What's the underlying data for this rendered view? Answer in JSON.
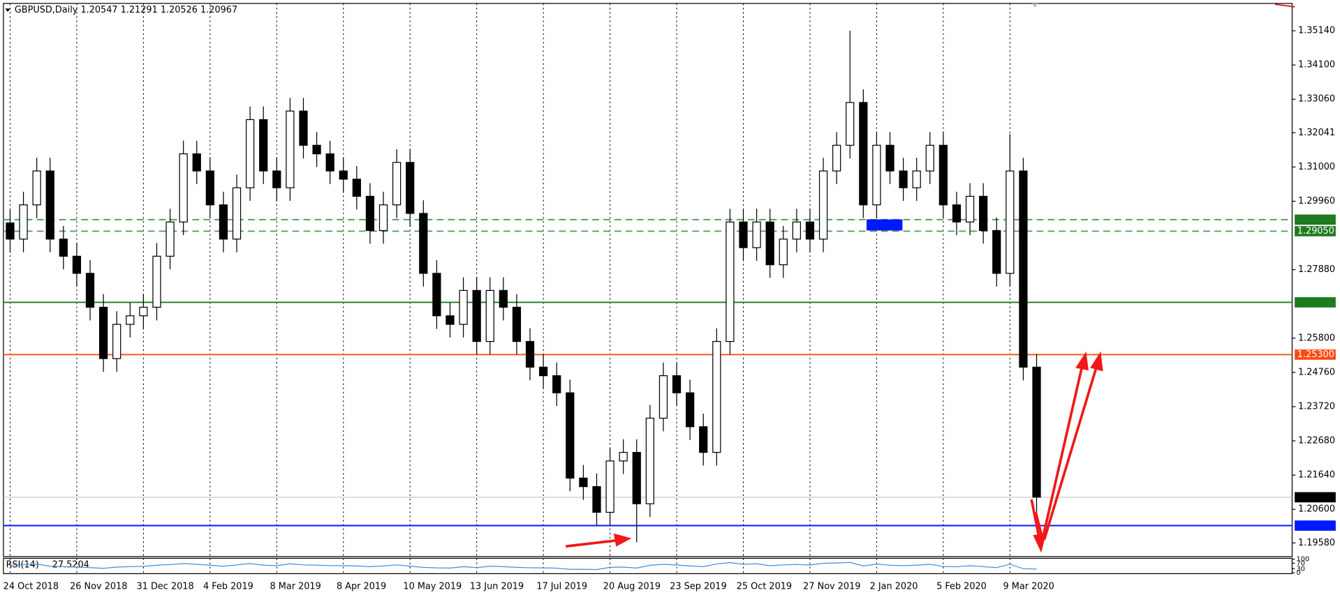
{
  "chart_data": [
    {
      "type": "candlestick",
      "title": "GBPUSD,Daily  1.20547 1.21291 1.20526 1.20967",
      "categories": [
        "24 Oct 2018",
        null,
        null,
        null,
        null,
        "26 Nov 2018",
        null,
        null,
        null,
        null,
        "31 Dec 2018",
        null,
        null,
        null,
        null,
        "4 Feb 2019",
        null,
        null,
        null,
        null,
        "8 Mar 2019",
        null,
        null,
        null,
        null,
        "8 Apr 2019",
        null,
        null,
        null,
        null,
        "10 May 2019",
        null,
        null,
        null,
        null,
        "13 Jun 2019",
        null,
        null,
        null,
        null,
        "17 Jul 2019",
        null,
        null,
        null,
        null,
        "20 Aug 2019",
        null,
        null,
        null,
        null,
        "23 Sep 2019",
        null,
        null,
        null,
        null,
        "25 Oct 2019",
        null,
        null,
        null,
        null,
        "27 Nov 2019",
        null,
        null,
        null,
        null,
        "2 Jan 2020",
        null,
        null,
        null,
        null,
        "5 Feb 2020",
        null,
        null,
        null,
        null,
        "9 Mar 2020",
        null,
        null
      ],
      "open": [
        1.293,
        1.2881,
        1.2985,
        1.3088,
        1.2881,
        1.2829,
        1.2777,
        1.2674,
        1.2518,
        1.2622,
        1.2648,
        1.2674,
        1.2829,
        1.2933,
        1.314,
        1.3088,
        1.2985,
        1.2881,
        1.3037,
        1.3244,
        1.3088,
        1.3037,
        1.327,
        1.3166,
        1.314,
        1.3088,
        1.3063,
        1.3011,
        1.2907,
        1.2985,
        1.3114,
        1.2959,
        1.2777,
        1.2648,
        1.2622,
        1.2725,
        1.257,
        1.2725,
        1.2674,
        1.257,
        1.2492,
        1.2466,
        1.2414,
        1.2155,
        1.2129,
        1.2051,
        1.2207,
        1.2233,
        1.2077,
        1.2337,
        1.2466,
        1.2414,
        1.2311,
        1.2233,
        1.257,
        1.2933,
        1.2855,
        1.2933,
        1.2803,
        1.2881,
        1.2933,
        1.2881,
        1.3088,
        1.3166,
        1.3296,
        1.2985,
        1.3166,
        1.3088,
        1.3037,
        1.3088,
        1.3166,
        1.2985,
        1.2933,
        1.3011,
        1.2907,
        1.2777,
        1.3088,
        1.2492
      ],
      "high": [
        1.297,
        1.3025,
        1.3128,
        1.3128,
        1.2921,
        1.2869,
        1.2817,
        1.2714,
        1.2662,
        1.2688,
        1.2714,
        1.2869,
        1.2973,
        1.318,
        1.318,
        1.3128,
        1.3025,
        1.3077,
        1.3284,
        1.3284,
        1.3128,
        1.331,
        1.331,
        1.3206,
        1.318,
        1.3128,
        1.3103,
        1.3051,
        1.3025,
        1.3154,
        1.3154,
        1.2999,
        1.2817,
        1.2688,
        1.2765,
        1.2765,
        1.2765,
        1.2765,
        1.2714,
        1.261,
        1.2532,
        1.2506,
        1.2454,
        1.2195,
        1.2169,
        1.2247,
        1.2273,
        1.2273,
        1.2377,
        1.2506,
        1.2506,
        1.2454,
        1.2351,
        1.261,
        1.2973,
        1.2973,
        1.2973,
        1.2973,
        1.2921,
        1.2973,
        1.2973,
        1.3128,
        1.3206,
        1.3514,
        1.3336,
        1.3206,
        1.3206,
        1.3128,
        1.3128,
        1.3206,
        1.3206,
        1.3025,
        1.3051,
        1.3051,
        1.2947,
        1.32,
        1.3128,
        1.2532
      ],
      "low": [
        1.2841,
        1.2841,
        1.2945,
        1.2841,
        1.2789,
        1.2737,
        1.2634,
        1.2478,
        1.2478,
        1.2582,
        1.2608,
        1.2634,
        1.2789,
        1.2893,
        1.3048,
        1.2945,
        1.2841,
        1.2841,
        1.2997,
        1.3048,
        1.2997,
        1.2997,
        1.3126,
        1.31,
        1.3048,
        1.3023,
        1.2971,
        1.2867,
        1.2867,
        1.2945,
        1.2919,
        1.2737,
        1.2608,
        1.2582,
        1.2582,
        1.253,
        1.253,
        1.2634,
        1.253,
        1.2452,
        1.2426,
        1.2374,
        1.2115,
        1.2089,
        1.2011,
        1.2011,
        1.2167,
        1.196,
        1.2037,
        1.2297,
        1.2374,
        1.2271,
        1.2193,
        1.2193,
        1.253,
        1.2815,
        1.2815,
        1.2763,
        1.2763,
        1.2841,
        1.2841,
        1.2841,
        1.3048,
        1.3126,
        1.2945,
        1.2945,
        1.3048,
        1.2997,
        1.2997,
        1.3048,
        1.2945,
        1.2893,
        1.2893,
        1.2867,
        1.2737,
        1.2737,
        1.2452,
        1.2
      ],
      "close": [
        1.2881,
        1.2985,
        1.3088,
        1.2881,
        1.2829,
        1.2777,
        1.2674,
        1.2518,
        1.2622,
        1.2648,
        1.2674,
        1.2829,
        1.2933,
        1.314,
        1.3088,
        1.2985,
        1.2881,
        1.3037,
        1.3244,
        1.3088,
        1.3037,
        1.327,
        1.3166,
        1.314,
        1.3088,
        1.3063,
        1.3011,
        1.2907,
        1.2985,
        1.3114,
        1.2959,
        1.2777,
        1.2648,
        1.2622,
        1.2725,
        1.257,
        1.2725,
        1.2674,
        1.257,
        1.2492,
        1.2466,
        1.2414,
        1.2155,
        1.2129,
        1.2051,
        1.2207,
        1.2233,
        1.2077,
        1.2337,
        1.2466,
        1.2414,
        1.2311,
        1.2233,
        1.257,
        1.2933,
        1.2855,
        1.2933,
        1.2803,
        1.2881,
        1.2933,
        1.2881,
        1.3088,
        1.3166,
        1.3296,
        1.2985,
        1.3166,
        1.3088,
        1.3037,
        1.3088,
        1.3166,
        1.2985,
        1.2933,
        1.3011,
        1.2907,
        1.2777,
        1.3088,
        1.2492,
        1.2097
      ],
      "up_color": "#ffffff",
      "down_color": "#000000",
      "edge_color": "#000000",
      "ylim": [
        1.19165,
        1.3597
      ],
      "yticks": [
        {
          "value": 1.3514,
          "label": "1.35140"
        },
        {
          "value": 1.341,
          "label": "1.34100"
        },
        {
          "value": 1.3306,
          "label": "1.33060"
        },
        1.32041,
        {
          "value": 1.31,
          "label": "1.31000"
        },
        {
          "value": 1.2996,
          "label": "1.29960"
        },
        {
          "value": 1.2788,
          "label": "1.27880"
        },
        {
          "value": 1.258,
          "label": "1.25800"
        },
        {
          "value": 1.2476,
          "label": "1.24760"
        },
        {
          "value": 1.2372,
          "label": "1.23720"
        },
        {
          "value": 1.2268,
          "label": "1.22680"
        },
        {
          "value": 1.2164,
          "label": "1.21640"
        },
        {
          "value": 1.206,
          "label": "1.20600"
        },
        {
          "value": 1.1958,
          "label": "1.19580"
        }
      ],
      "grid": true,
      "levels": [
        {
          "value": 1.29401,
          "color": "#5aa05a",
          "box": "#1e7b1e",
          "style": "dashed"
        },
        {
          "value": 1.2905,
          "label": "1.29050",
          "color": "#5aa05a",
          "box": "#1e7b1e",
          "style": "dashed"
        },
        {
          "value": 1.26889,
          "color": "#1e7b1e",
          "box": "#1e7b1e",
          "style": "solid"
        },
        {
          "value": 1.253,
          "label": "1.25300",
          "color": "#ff5a1f",
          "box": "#ff4a10",
          "style": "solid"
        },
        {
          "value": 1.20967,
          "color": "#c8c8c8",
          "box": "#000000",
          "style": "solid"
        },
        {
          "value": 1.20106,
          "color": "#0018ff",
          "box": "#0018ff",
          "style": "solid"
        }
      ]
    },
    {
      "type": "line",
      "name": "RSI(14)",
      "color": "#3b8fe8",
      "values": [
        55,
        60,
        64,
        48,
        45,
        42,
        38,
        33,
        42,
        45,
        47,
        56,
        60,
        68,
        62,
        55,
        48,
        58,
        68,
        56,
        52,
        66,
        58,
        56,
        53,
        52,
        50,
        45,
        50,
        58,
        48,
        40,
        36,
        35,
        45,
        38,
        48,
        45,
        40,
        37,
        36,
        34,
        25,
        26,
        24,
        40,
        42,
        35,
        55,
        62,
        57,
        50,
        45,
        65,
        75,
        62,
        66,
        52,
        58,
        61,
        57,
        70,
        72,
        76,
        50,
        64,
        56,
        52,
        56,
        62,
        46,
        44,
        52,
        45,
        38,
        63,
        30,
        27.5204
      ],
      "ylim": [
        0,
        100
      ],
      "yticks": [
        0,
        30,
        70,
        100
      ]
    }
  ]
}
